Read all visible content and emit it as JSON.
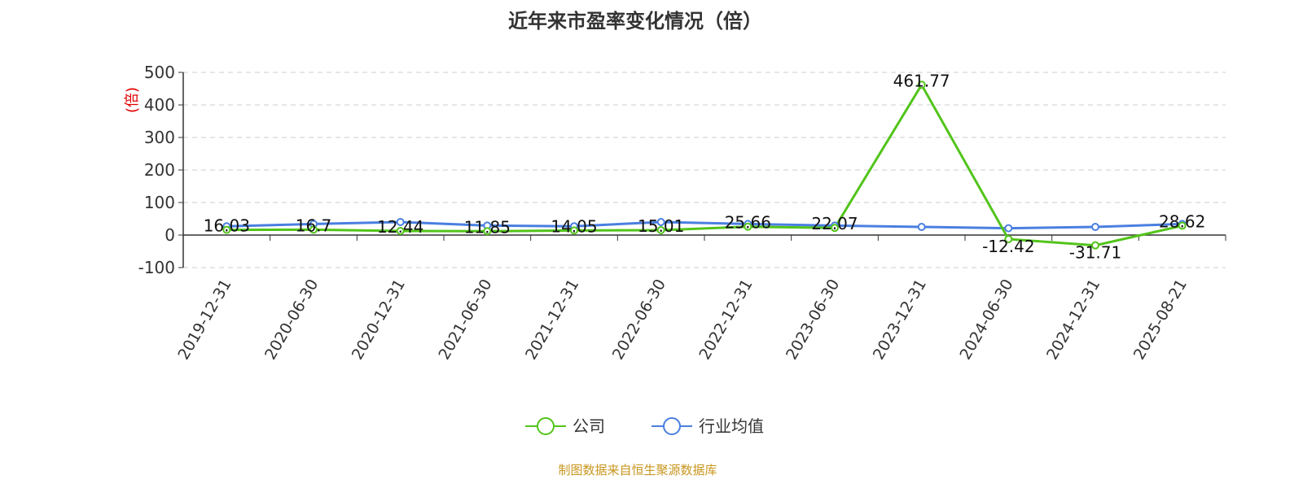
{
  "chart_data": {
    "type": "line",
    "title": "近年来市盈率变化情况（倍）",
    "ylabel": "(倍)",
    "ylim": [
      -100,
      500
    ],
    "yticks": [
      -100,
      0,
      100,
      200,
      300,
      400,
      500
    ],
    "grid": true,
    "legend_position": "bottom",
    "categories": [
      "2019-12-31",
      "2020-06-30",
      "2020-12-31",
      "2021-06-30",
      "2021-12-31",
      "2022-06-30",
      "2022-12-31",
      "2023-06-30",
      "2023-12-31",
      "2024-06-30",
      "2024-12-31",
      "2025-08-21"
    ],
    "series": [
      {
        "name": "公司",
        "color": "#52c41a",
        "values": [
          16.03,
          16.7,
          12.44,
          11.85,
          14.05,
          15.01,
          25.66,
          22.07,
          461.77,
          -12.42,
          -31.71,
          28.62
        ],
        "labels": [
          "16.03",
          "16.7",
          "12.44",
          "11.85",
          "14.05",
          "15.01",
          "25.66",
          "22.07",
          "461.77",
          "-12.42",
          "-31.71",
          "28.62"
        ]
      },
      {
        "name": "行业均值",
        "color": "#4a7fe0",
        "values": [
          27,
          34,
          40,
          29,
          27,
          40,
          34,
          29,
          25,
          21,
          25,
          34
        ]
      }
    ],
    "ylabel_color": "#e00000"
  },
  "source": "制图数据来自恒生聚源数据库"
}
